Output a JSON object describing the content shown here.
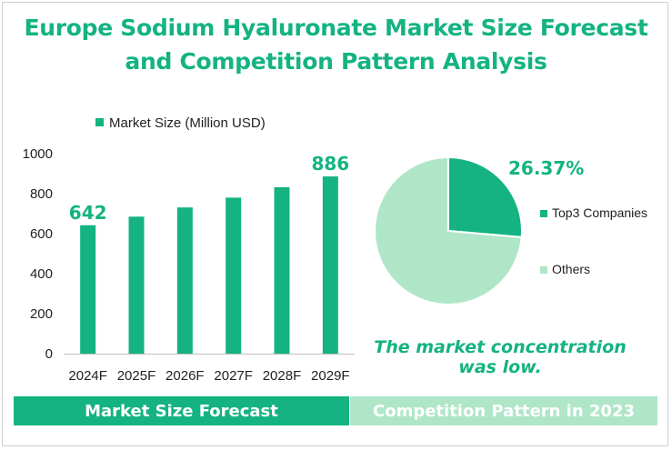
{
  "title_line1": "Europe Sodium Hyaluronate Market Size Forecast",
  "title_line2": "and Competition Pattern Analysis",
  "note_line1": "The market concentration",
  "note_line2": "was low.",
  "band_left": "Market Size Forecast",
  "band_right": "Competition Pattern in 2023",
  "colors": {
    "accent": "#14b381",
    "light": "#b0e6c8"
  },
  "chart_data": [
    {
      "type": "bar",
      "legend": "Market Size  (Million USD)",
      "categories": [
        "2024F",
        "2025F",
        "2026F",
        "2027F",
        "2028F",
        "2029F"
      ],
      "values": [
        642,
        685,
        731,
        780,
        832,
        886
      ],
      "data_labels": [
        "642",
        "",
        "",
        "",
        "",
        "886"
      ],
      "ylim": [
        0,
        1000
      ],
      "yticks": [
        0,
        200,
        400,
        600,
        800,
        1000
      ],
      "grid": false,
      "legend_position": "top"
    },
    {
      "type": "pie",
      "labels": [
        "Top3 Companies",
        "Others"
      ],
      "values": [
        26.37,
        73.63
      ],
      "data_labels": [
        "26.37%",
        ""
      ],
      "legend_position": "right"
    }
  ]
}
